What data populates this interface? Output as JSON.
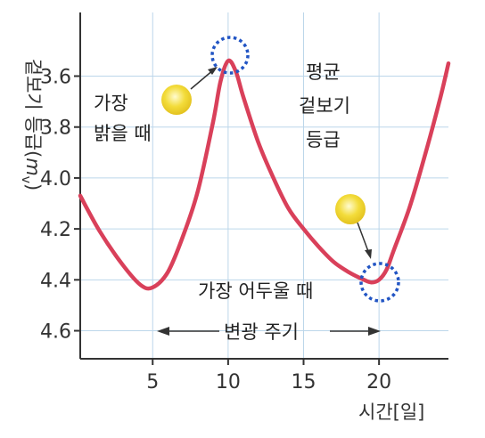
{
  "chart_data": {
    "type": "line",
    "xlabel": "시간[일]",
    "ylabel": "겉보기 등급(",
    "ylabel_symbol": "m",
    "ylabel_subscript": "v",
    "ylabel_close": ")",
    "x_ticks": [
      5,
      10,
      15,
      20
    ],
    "y_ticks": [
      "3.6",
      "3.8",
      "4.0",
      "4.2",
      "4.4",
      "4.6"
    ],
    "xlim": [
      0.2,
      24.6
    ],
    "ylim": [
      3.35,
      4.71
    ],
    "y_inverted": true,
    "grid": true,
    "series": [
      {
        "color": "#d9405a",
        "x": [
          0.2,
          1.5,
          3.0,
          4.2,
          5.0,
          6.0,
          7.0,
          8.0,
          9.0,
          9.5,
          10.0,
          10.5,
          11.0,
          12.0,
          13.0,
          14.0,
          15.0,
          16.0,
          17.0,
          18.0,
          19.0,
          19.5,
          20.0,
          20.5,
          21.0,
          22.0,
          23.0,
          24.0,
          24.6
        ],
        "y": [
          4.07,
          4.21,
          4.34,
          4.42,
          4.43,
          4.37,
          4.23,
          4.05,
          3.78,
          3.62,
          3.54,
          3.58,
          3.68,
          3.86,
          4.0,
          4.12,
          4.2,
          4.27,
          4.33,
          4.37,
          4.4,
          4.41,
          4.4,
          4.36,
          4.28,
          4.12,
          3.92,
          3.7,
          3.55
        ]
      }
    ]
  },
  "annotations": {
    "brightest_line1": "가장",
    "brightest_line2": "밝을 때",
    "mean_line1": "평균",
    "mean_line2": "겉보기",
    "mean_line3": "등급",
    "dimmest": "가장 어두울 때",
    "period": "변광 주기"
  },
  "colors": {
    "curve": "#d9405a",
    "marker_circle": "#2255c4",
    "sun": "#f3dc3a",
    "grid": "#bcd6ea",
    "axis": "#333333"
  }
}
